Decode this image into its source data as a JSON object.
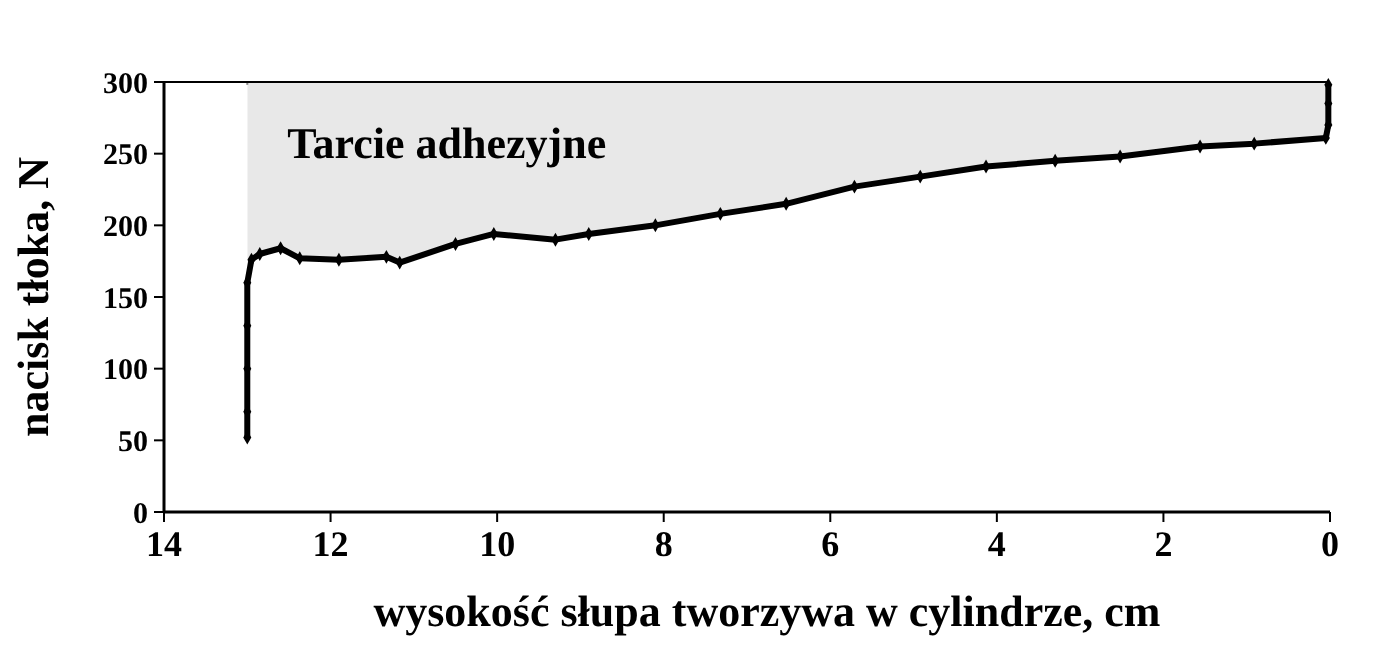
{
  "chart_data": {
    "type": "line",
    "xlabel": "wysokość słupa tworzywa w cylindrze, cm",
    "ylabel": "nacisk tłoka, N",
    "xlim": [
      14,
      0
    ],
    "xticks": [
      14,
      12,
      10,
      8,
      6,
      4,
      2,
      0
    ],
    "ylim": [
      0,
      300
    ],
    "yticks": [
      0,
      50,
      100,
      150,
      200,
      250,
      300
    ],
    "grid": false,
    "marker": "diamond",
    "line_style": "solid",
    "bands": [
      {
        "axis": "x",
        "from": 13,
        "to": 0,
        "label": "Tarcie adhezyjne",
        "color": "#e8e8e8"
      }
    ],
    "series": [
      {
        "color": "#000000",
        "x": [
          13,
          13,
          13,
          13,
          13,
          12.95,
          12.85,
          12.6,
          12.37,
          11.9,
          11.33,
          11.17,
          10.5,
          10.04,
          9.3,
          8.9,
          8.1,
          7.32,
          6.53,
          5.71,
          4.92,
          4.13,
          3.3,
          2.52,
          1.56,
          0.91,
          0.05,
          0.02,
          0.02,
          0.02
        ],
        "values": [
          52,
          70,
          100,
          130,
          160,
          176,
          180,
          184,
          177,
          176,
          178,
          174,
          187,
          194,
          190,
          194,
          200,
          208,
          215,
          227,
          234,
          241,
          245,
          248,
          255,
          257,
          261,
          270,
          285,
          298
        ]
      }
    ]
  }
}
